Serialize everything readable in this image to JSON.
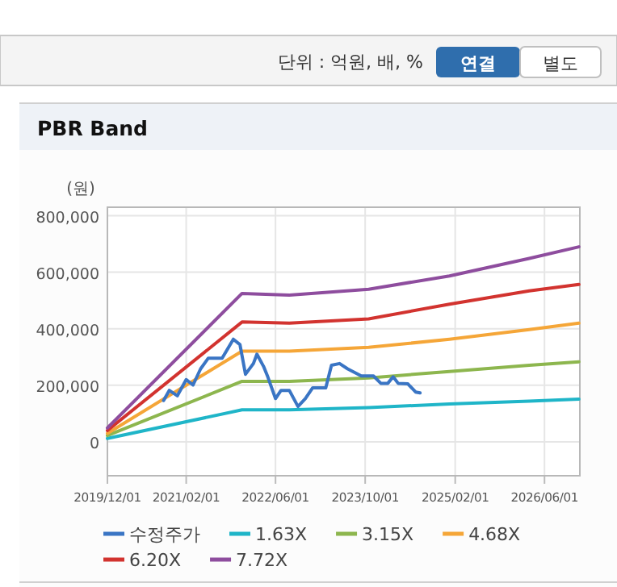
{
  "chart_data": {
    "type": "line",
    "title": "PBR Band",
    "ylabel": "(원)",
    "annotations": [
      "단위 : 억원, 배, %",
      "연결",
      "별도"
    ],
    "xlim": [
      "2019-12-01",
      "2026-12-10"
    ],
    "xticks": [
      {
        "value": "2019-12-01",
        "label": "2019/12/01"
      },
      {
        "value": "2021-02-01",
        "label": "2021/02/01"
      },
      {
        "value": "2022-06-01",
        "label": "2022/06/01"
      },
      {
        "value": "2023-10-01",
        "label": "2023/10/01"
      },
      {
        "value": "2025-02-01",
        "label": "2025/02/01"
      },
      {
        "value": "2026-06-01",
        "label": "2026/06/01"
      }
    ],
    "ylim": [
      -120000,
      830000
    ],
    "yticks": [
      {
        "value": 0,
        "label": "0"
      },
      {
        "value": 200000,
        "label": "200,000"
      },
      {
        "value": 400000,
        "label": "400,000"
      },
      {
        "value": 600000,
        "label": "600,000"
      },
      {
        "value": 800000,
        "label": "800,000"
      }
    ],
    "grid": true,
    "legend": "bottom",
    "series": [
      {
        "name": "수정주가",
        "color": "#3a75c4",
        "x": [
          "2020-10-01",
          "2020-11-01",
          "2020-12-15",
          "2021-02-01",
          "2021-03-10",
          "2021-04-20",
          "2021-06-01",
          "2021-08-15",
          "2021-10-15",
          "2021-11-20",
          "2021-12-20",
          "2022-02-01",
          "2022-02-20",
          "2022-03-28",
          "2022-04-20",
          "2022-06-01",
          "2022-07-01",
          "2022-08-15",
          "2022-10-01",
          "2022-11-10",
          "2022-12-20",
          "2023-03-01",
          "2023-04-01",
          "2023-05-15",
          "2023-06-28",
          "2023-09-10",
          "2023-11-15",
          "2023-12-25",
          "2024-02-01",
          "2024-03-01",
          "2024-03-28",
          "2024-05-20",
          "2024-07-01",
          "2024-07-25"
        ],
        "values": [
          146000,
          182000,
          163000,
          220000,
          201000,
          258000,
          296000,
          296000,
          363000,
          344000,
          239000,
          277000,
          310000,
          267000,
          230000,
          153000,
          182000,
          182000,
          125000,
          153000,
          191000,
          191000,
          271000,
          277000,
          258000,
          233000,
          233000,
          207000,
          207000,
          230000,
          207000,
          205000,
          176000,
          173000
        ]
      },
      {
        "name": "1.63X",
        "color": "#1fb5c8",
        "x": [
          "2019-12-01",
          "2021-12-01",
          "2022-08-15",
          "2023-10-20",
          "2025-01-01",
          "2026-03-10",
          "2026-12-05"
        ],
        "values": [
          12000,
          113000,
          113000,
          121000,
          134000,
          144000,
          151000
        ]
      },
      {
        "name": "3.15X",
        "color": "#8db64e",
        "x": [
          "2019-12-01",
          "2021-12-01",
          "2022-08-15",
          "2023-10-20",
          "2025-01-01",
          "2026-03-10",
          "2026-12-05"
        ],
        "values": [
          22000,
          214000,
          214000,
          226000,
          249000,
          271000,
          283000
        ]
      },
      {
        "name": "4.68X",
        "color": "#f5a638",
        "x": [
          "2019-12-01",
          "2021-12-01",
          "2022-08-15",
          "2023-10-20",
          "2025-01-01",
          "2026-03-10",
          "2026-12-05"
        ],
        "values": [
          30000,
          321000,
          321000,
          334000,
          363000,
          397000,
          420000
        ]
      },
      {
        "name": "6.20X",
        "color": "#d2332f",
        "x": [
          "2019-12-01",
          "2021-12-01",
          "2022-08-15",
          "2023-10-20",
          "2025-01-01",
          "2026-03-10",
          "2026-12-05"
        ],
        "values": [
          40000,
          424000,
          420000,
          435000,
          487000,
          534000,
          557000
        ]
      },
      {
        "name": "7.72X",
        "color": "#8e4d9e",
        "x": [
          "2019-12-01",
          "2021-12-01",
          "2022-08-15",
          "2023-10-20",
          "2025-01-01",
          "2026-03-10",
          "2026-12-05"
        ],
        "values": [
          49000,
          525000,
          519000,
          540000,
          587000,
          649000,
          690000
        ]
      }
    ]
  }
}
